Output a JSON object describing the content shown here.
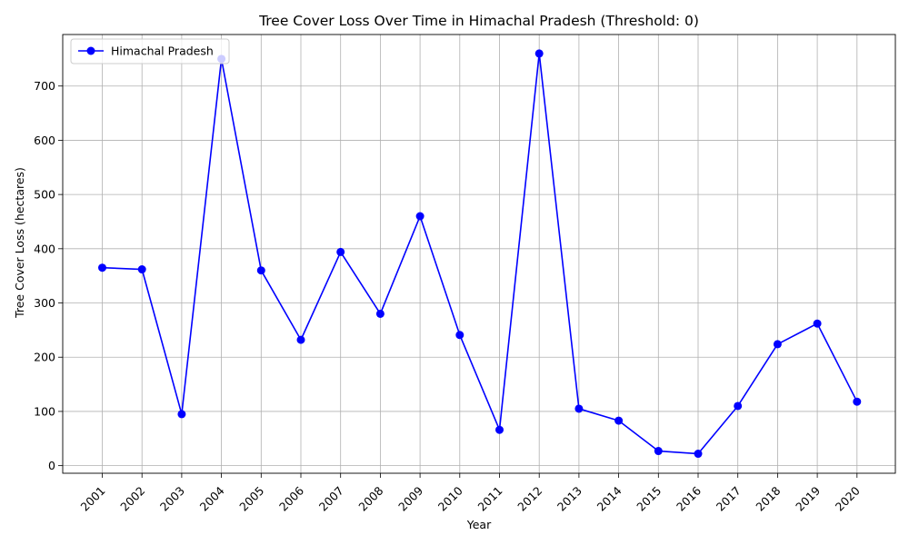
{
  "chart_data": {
    "type": "line",
    "title": "Tree Cover Loss Over Time in Himachal Pradesh (Threshold: 0)",
    "xlabel": "Year",
    "ylabel": "Tree Cover Loss (hectares)",
    "categories": [
      "2001",
      "2002",
      "2003",
      "2004",
      "2005",
      "2006",
      "2007",
      "2008",
      "2009",
      "2010",
      "2011",
      "2012",
      "2013",
      "2014",
      "2015",
      "2016",
      "2017",
      "2018",
      "2019",
      "2020"
    ],
    "series": [
      {
        "name": "Himachal Pradesh",
        "color": "#0000ff",
        "marker": "circle",
        "values": [
          365,
          362,
          95,
          750,
          360,
          232,
          394,
          280,
          460,
          241,
          66,
          760,
          105,
          83,
          27,
          22,
          110,
          224,
          262,
          118
        ]
      }
    ],
    "ylim": [
      -14,
      795
    ],
    "yticks": [
      0,
      100,
      200,
      300,
      400,
      500,
      600,
      700
    ],
    "grid": true,
    "legend_position": "top-left",
    "xtick_rotation": 45
  }
}
